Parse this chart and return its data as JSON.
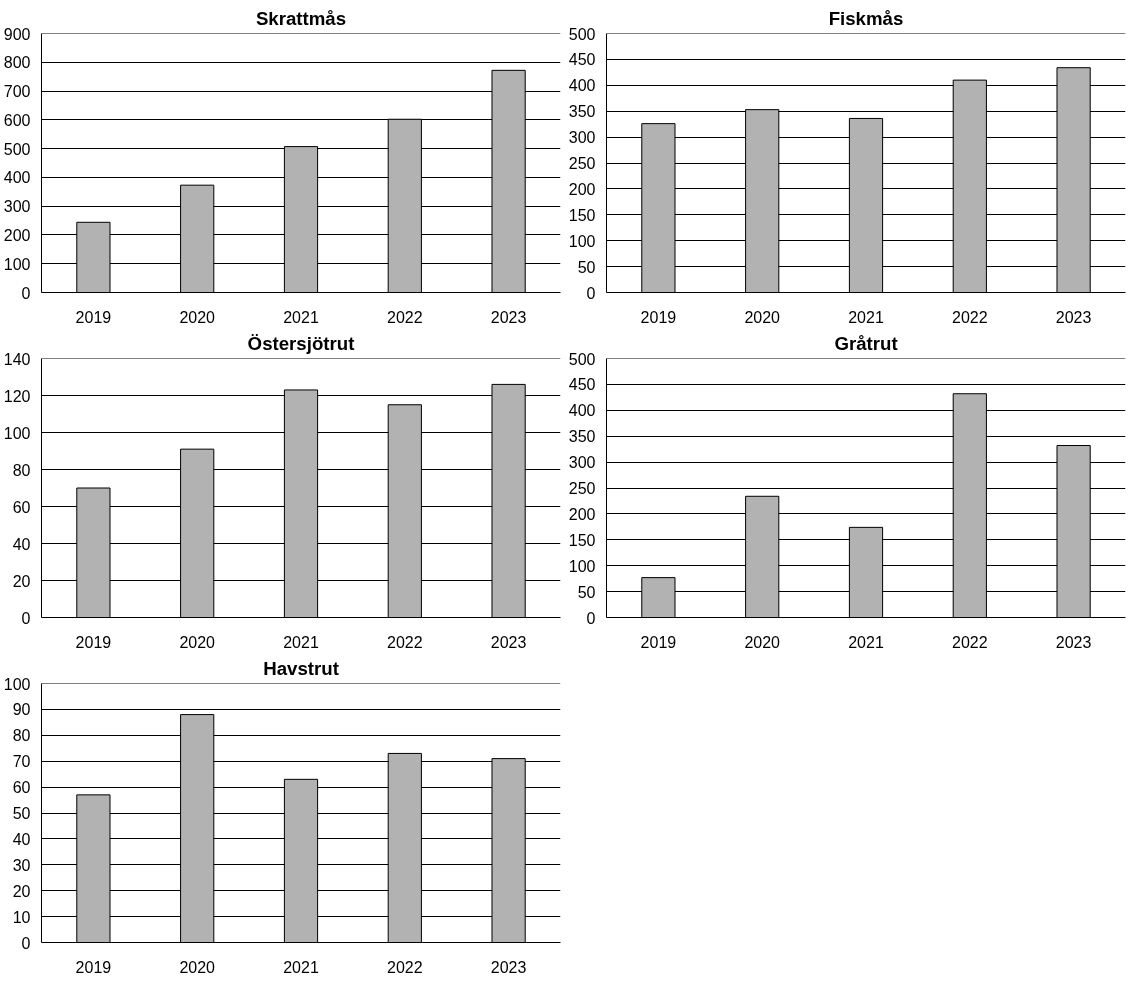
{
  "chart_data": [
    {
      "type": "bar",
      "title": "Skrattmås",
      "categories": [
        "2019",
        "2020",
        "2021",
        "2022",
        "2023"
      ],
      "values": [
        244,
        373,
        507,
        602,
        772
      ],
      "color": "#b2b2b2",
      "ylim": [
        0,
        900
      ],
      "yticks": [
        0,
        100,
        200,
        300,
        400,
        500,
        600,
        700,
        800,
        900
      ],
      "grid": "y"
    },
    {
      "type": "bar",
      "title": "Fiskmås",
      "categories": [
        "2019",
        "2020",
        "2021",
        "2022",
        "2023"
      ],
      "values": [
        326,
        353,
        336,
        410,
        434
      ],
      "color": "#b2b2b2",
      "ylim": [
        0,
        500
      ],
      "yticks": [
        0,
        50,
        100,
        150,
        200,
        250,
        300,
        350,
        400,
        450,
        500
      ],
      "grid": "y"
    },
    {
      "type": "bar",
      "title": "Östersjötrut",
      "categories": [
        "2019",
        "2020",
        "2021",
        "2022",
        "2023"
      ],
      "values": [
        70,
        91,
        123,
        115,
        126
      ],
      "color": "#b2b2b2",
      "ylim": [
        0,
        140
      ],
      "yticks": [
        0,
        20,
        40,
        60,
        80,
        100,
        120,
        140
      ],
      "grid": "y"
    },
    {
      "type": "bar",
      "title": "Gråtrut",
      "categories": [
        "2019",
        "2020",
        "2021",
        "2022",
        "2023"
      ],
      "values": [
        77,
        234,
        174,
        432,
        332
      ],
      "color": "#b2b2b2",
      "ylim": [
        0,
        500
      ],
      "yticks": [
        0,
        50,
        100,
        150,
        200,
        250,
        300,
        350,
        400,
        450,
        500
      ],
      "grid": "y"
    },
    {
      "type": "bar",
      "title": "Havstrut",
      "categories": [
        "2019",
        "2020",
        "2021",
        "2022",
        "2023"
      ],
      "values": [
        57,
        88,
        63,
        73,
        71
      ],
      "color": "#b2b2b2",
      "ylim": [
        0,
        100
      ],
      "yticks": [
        0,
        10,
        20,
        30,
        40,
        50,
        60,
        70,
        80,
        90,
        100
      ],
      "grid": "y"
    }
  ]
}
